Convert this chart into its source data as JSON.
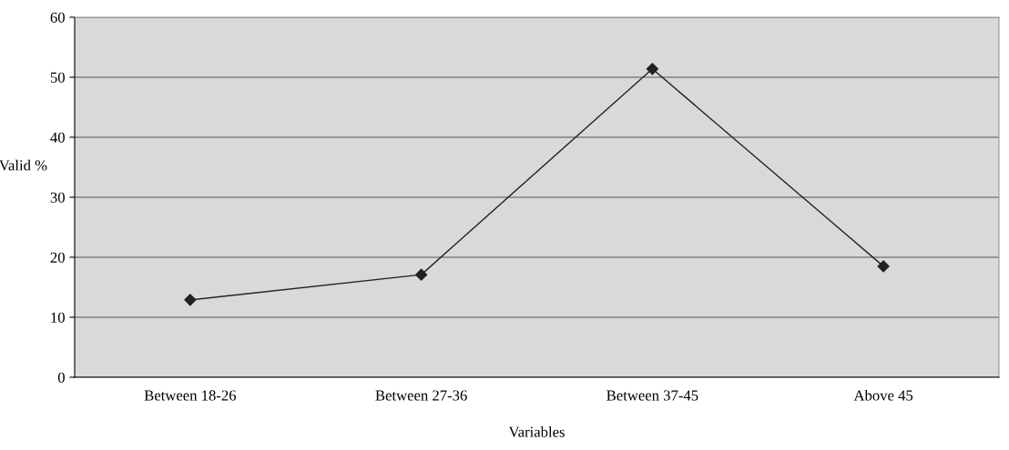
{
  "chart_data": {
    "type": "line",
    "xlabel": "Variables",
    "ylabel": "Valid %",
    "categories": [
      "Between 18-26",
      "Between 27-36",
      "Between 37-45",
      "Above 45"
    ],
    "series": [
      {
        "color": "#222222",
        "values": [
          12.9,
          17.1,
          51.4,
          18.5
        ]
      }
    ],
    "ylim": [
      0,
      60
    ],
    "yticks": [
      0,
      10,
      20,
      30,
      40,
      50,
      60
    ],
    "grid": "y",
    "marker": "diamond",
    "line_style": "solid",
    "legend": false
  }
}
